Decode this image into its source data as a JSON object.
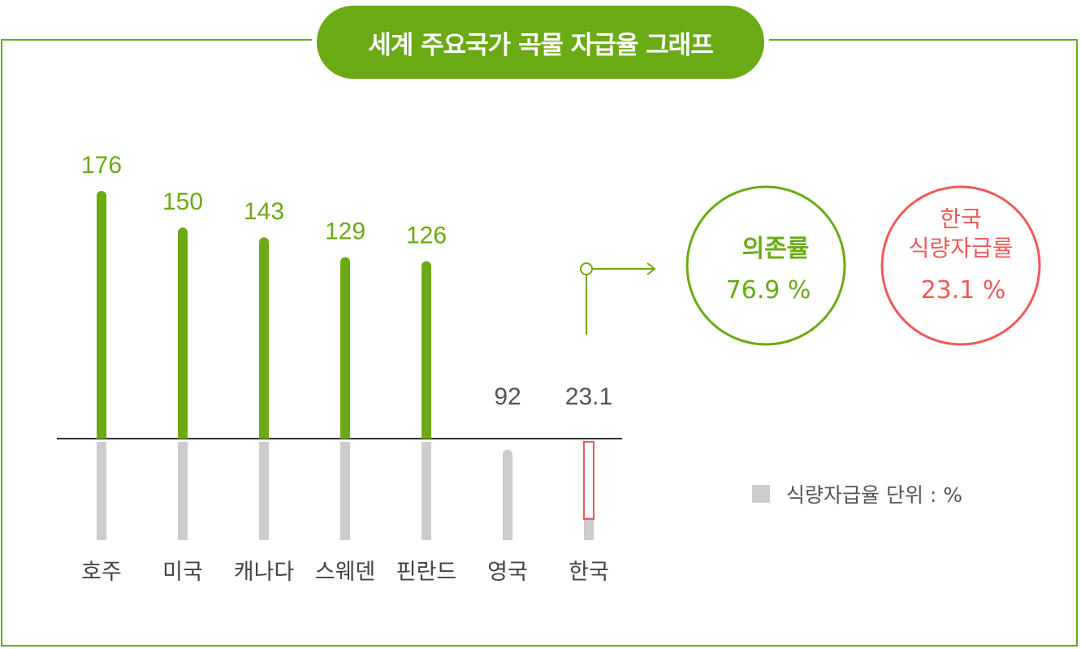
{
  "title": "세계 주요국가 곡물 자급율 그래프",
  "chart_data": {
    "type": "bar",
    "title": "세계 주요국가 곡물 자급율 그래프",
    "categories": [
      "호주",
      "미국",
      "캐나다",
      "스웨덴",
      "핀란드",
      "영국",
      "한국"
    ],
    "values": [
      176,
      150,
      143,
      129,
      126,
      92,
      23.1
    ],
    "value_labels": [
      "176",
      "150",
      "143",
      "129",
      "126",
      "92",
      "23.1"
    ],
    "colors": {
      "accent": "#6aaa14",
      "highlight": "#f05a5a",
      "neutral_bar": "#cccccc",
      "label_dark": "#555555"
    },
    "highlighted_category": "한국",
    "legend": {
      "label": "식량자급율 단위 : %",
      "placement": "right"
    },
    "grid": false
  },
  "dependency": {
    "label": "의존률",
    "value": "76.9 %"
  },
  "korea_rate": {
    "label_line1": "한국",
    "label_line2": "식량자급률",
    "value": "23.1 %"
  }
}
